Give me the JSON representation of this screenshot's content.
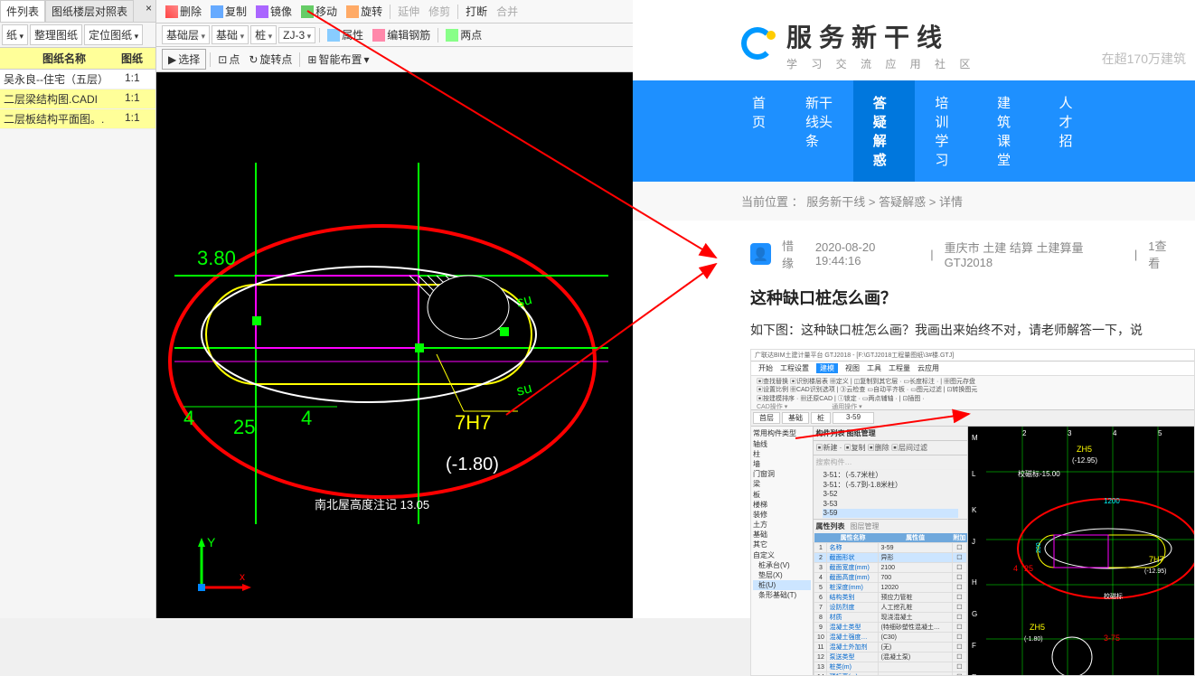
{
  "left": {
    "tabs": [
      "件列表",
      "图纸楼层对照表"
    ],
    "close": "×",
    "buttons": [
      "纸",
      "整理图纸",
      "定位图纸"
    ],
    "header_name": "图纸名称",
    "header_scale": "图纸",
    "rows": [
      {
        "name": "吴永良--住宅（五层）",
        "scale": "1:1",
        "sel": false
      },
      {
        "name": "二层梁结构图.CADI",
        "scale": "1:1",
        "sel": true
      },
      {
        "name": "二层板结构平面图。.",
        "scale": "1:1",
        "sel": true
      }
    ]
  },
  "toolbars": {
    "row1": [
      {
        "t": "删除"
      },
      {
        "t": "复制"
      },
      {
        "t": "镜像"
      },
      {
        "t": "移动"
      },
      {
        "t": "旋转"
      },
      {
        "sep": true
      },
      {
        "t": "延伸",
        "d": true
      },
      {
        "t": "修剪",
        "d": true
      },
      {
        "sep": true
      },
      {
        "t": "打断"
      },
      {
        "t": "合并",
        "d": true
      }
    ],
    "row2": {
      "dropdowns": [
        "基础层",
        "基础",
        "桩",
        "ZJ-3"
      ],
      "items": [
        "属性",
        "编辑钢筋",
        "两点"
      ]
    },
    "row3": {
      "select": "选择",
      "items": [
        "点",
        "旋转点",
        "智能布置"
      ]
    }
  },
  "cad": {
    "dimensions": {
      "a": "3.80",
      "b": "25",
      "c": "4",
      "d": "4"
    },
    "label": "7H7",
    "elev": "(-1.80)",
    "note": "南北屋高度注记 13.05",
    "axis_y": "Y",
    "axis_x": "x",
    "circle_mark": "su"
  },
  "site": {
    "title": "服务新干线",
    "subtitle": "学 习 交 流 应 用 社 区",
    "search_hint": "在超170万建筑",
    "nav": [
      "首页",
      "新干线头条",
      "答疑解惑",
      "培训学习",
      "建筑课堂",
      "人才招"
    ],
    "nav_active": 2
  },
  "breadcrumb": {
    "prefix": "当前位置 ：",
    "items": [
      "服务新干线",
      "答疑解惑",
      "详情"
    ]
  },
  "post": {
    "author": "惜缘",
    "time": "2020-08-20 19:44:16",
    "meta_sep": "|",
    "tags": "重庆市  土建 结算 土建算量GTJ2018",
    "views": "1查看",
    "title": "这种缺口桩怎么画？",
    "body": "如下图：这种缺口桩怎么画？我画出来始终不对，请老师解答一下，说",
    "embed_title": "广联达BIM土建计量平台 GTJ2018 - [F:\\GTJ2018工程量图纸\\3#楼.GTJ]",
    "embed_tabs": [
      "开始",
      "工程设置",
      "建模",
      "视图",
      "工具",
      "工程量",
      "云应用"
    ],
    "embed_dropdowns": [
      "首层",
      "基础",
      "桩",
      "3-59"
    ],
    "embed_section": "构件列表  图纸管理",
    "embed_toolbar": [
      "新建",
      "复制",
      "删除",
      "层间过滤"
    ],
    "embed_search": "搜索构件…",
    "embed_tree": [
      "3-51：（-5.7米柱）",
      "3-51：（-5.7到-1.8米柱）",
      "3-52",
      "3-53",
      "3-59"
    ],
    "embed_cat": [
      "常用构件类型",
      "轴线",
      "柱",
      "墙",
      "门窗洞",
      "梁",
      "板",
      "楼梯",
      "装修",
      "土方",
      "基础",
      "其它",
      "自定义",
      "桩承台(V)",
      "垫层(X)",
      "桩(U)",
      "条形基础(T)"
    ],
    "embed_prop_tab": [
      "属性列表",
      "图层管理"
    ],
    "embed_props": [
      [
        "1",
        "名称",
        "3-59"
      ],
      [
        "2",
        "截面形状",
        "异形"
      ],
      [
        "3",
        "截面宽度(mm)",
        "2100"
      ],
      [
        "4",
        "截面高度(mm)",
        "700"
      ],
      [
        "5",
        "桩深度(mm)",
        "12020"
      ],
      [
        "6",
        "结构类别",
        "预应力管桩"
      ],
      [
        "7",
        "设防烈度",
        "人工挖孔桩"
      ],
      [
        "8",
        "材质",
        "现浇混凝土"
      ],
      [
        "9",
        "混凝土类型",
        "(特细砂塑性混凝土…"
      ],
      [
        "10",
        "混凝土强度…",
        "(C30)"
      ],
      [
        "11",
        "混凝土外加剂",
        "(无)"
      ],
      [
        "12",
        "泵送类型",
        "(混凝土泵)"
      ],
      [
        "13",
        "桩类(m)",
        ""
      ],
      [
        "14",
        "顶标高(m)",
        ""
      ]
    ],
    "embed_col_add": "附加",
    "embed_cad_labels": {
      "top1": "ZH5",
      "top2": "(-12.95)",
      "w": "校磁标-15.00",
      "dim": "1200",
      "r": "200",
      "lab": "7H7",
      "elev": "(-12.95)",
      "bot": "校磁标",
      "zh5b": "ZH5",
      "elevb": "(-1.80)",
      "side": "3-75",
      "letters": [
        "M",
        "L",
        "K",
        "J",
        "H",
        "G",
        "F",
        "E"
      ],
      "nums": [
        "2",
        "3",
        "4",
        "5"
      ],
      "red4": "4",
      "red25": "25"
    }
  },
  "colors": {
    "accent": "#1e90ff",
    "highlight": "#ffff99",
    "arrow": "#ff0000",
    "cad_red": "#ff0000",
    "cad_green": "#00ff00",
    "cad_magenta": "#ff00ff",
    "cad_yellow": "#ffff00",
    "cad_white": "#ffffff",
    "cad_cyan": "#00ffff"
  }
}
